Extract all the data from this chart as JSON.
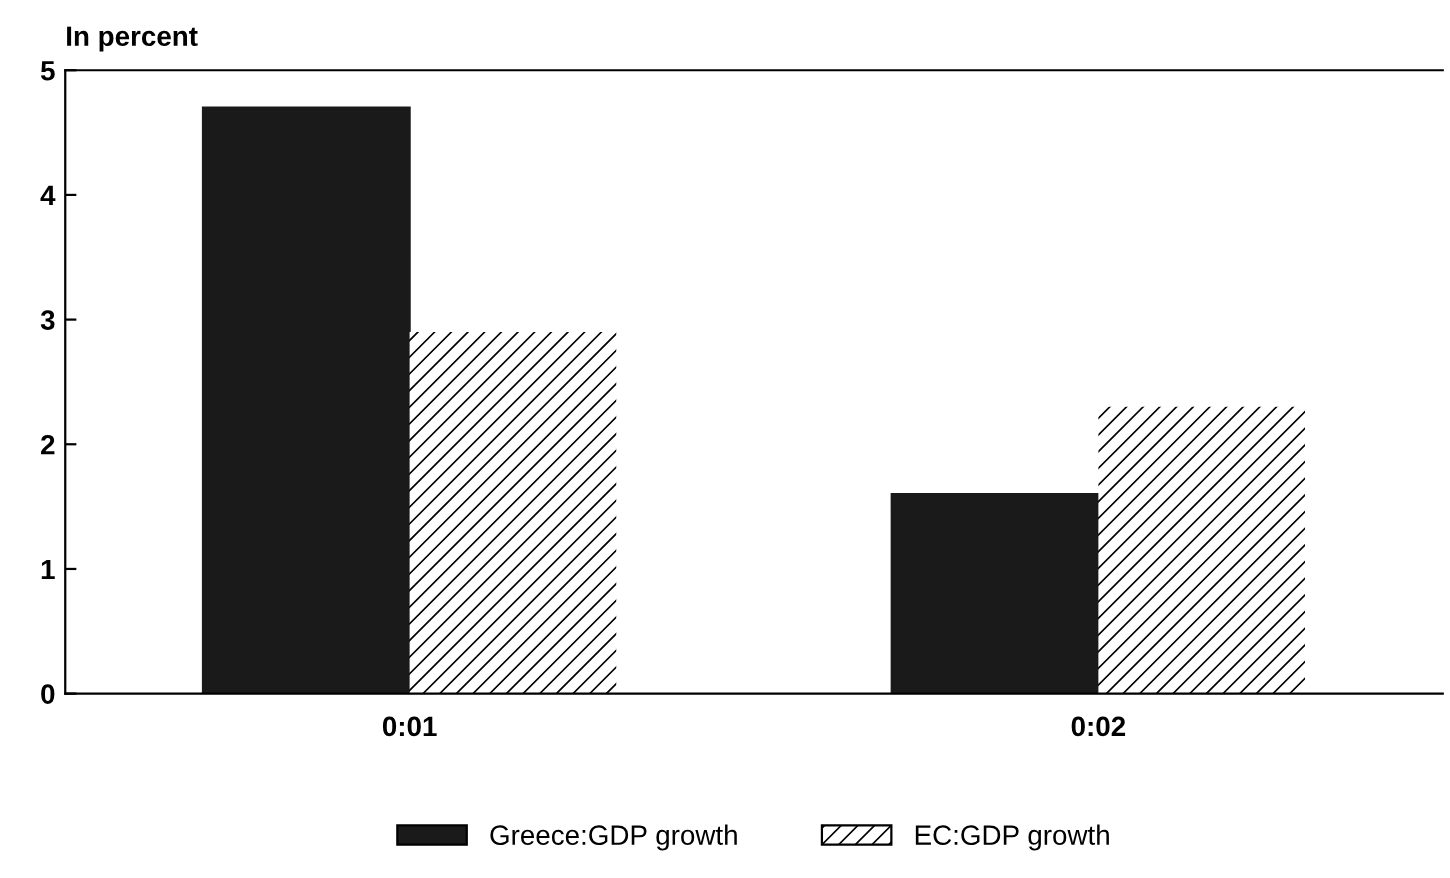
{
  "chart_data": {
    "type": "bar",
    "title": "In percent",
    "categories": [
      "0:01",
      "0:02"
    ],
    "series": [
      {
        "name": "Greece:GDP growth",
        "color": "#1a1a1a",
        "values": [
          4.7,
          1.6
        ]
      },
      {
        "name": "EC:GDP growth",
        "color": "#ffffff",
        "values": [
          2.9,
          2.3
        ]
      }
    ],
    "ylim": [
      0,
      5
    ],
    "yticks": [
      0,
      1,
      2,
      3,
      4,
      5
    ],
    "grid": false,
    "legend": "bottom"
  }
}
